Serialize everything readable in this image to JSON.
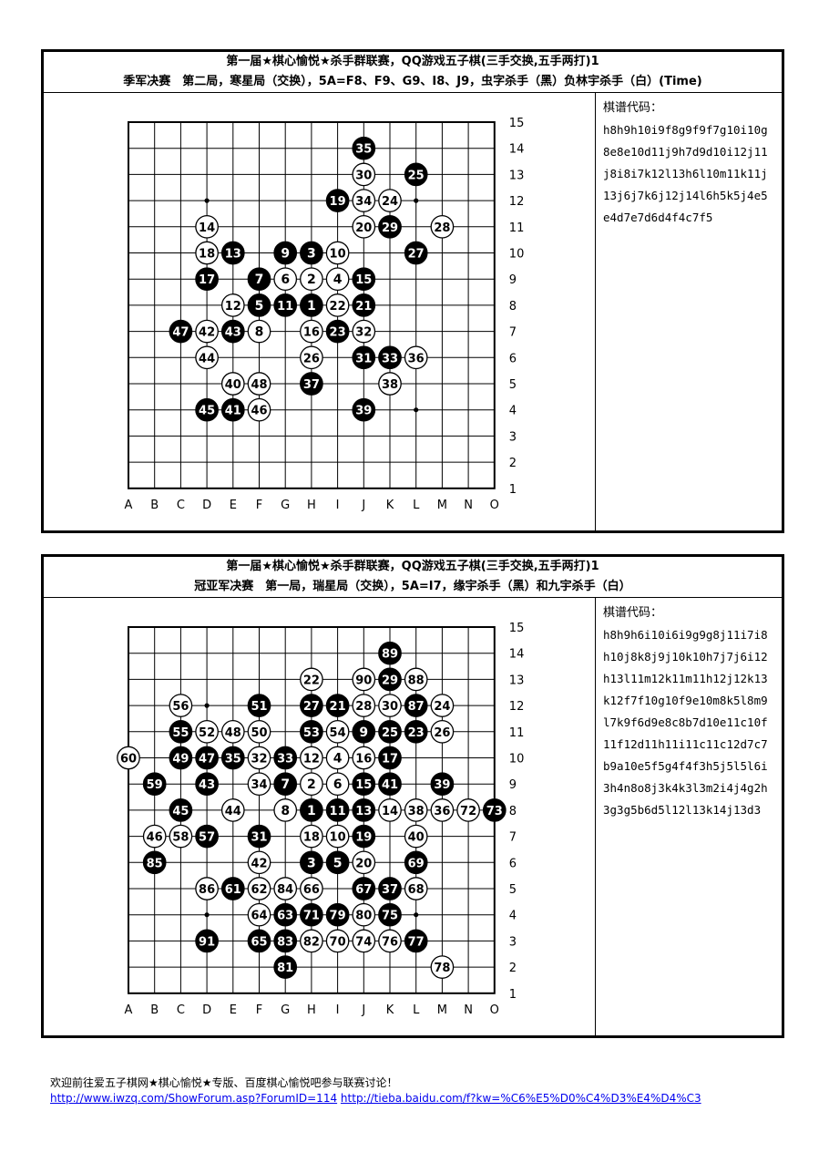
{
  "games": [
    {
      "title_line1": "第一届★棋心愉悦★杀手群联赛，QQ游戏五子棋(三手交换,五手两打)1",
      "title_line2": "季军决赛　第二局，寒星局（交换），5A=F8、F9、G9、I8、J9，虫字杀手（黑）负林宇杀手（白）(Time)",
      "code_label": "棋谱代码：",
      "code_lines": [
        "h8h9h10i9f8g9f9f7g10i10g",
        "8e8e10d11j9h7d9d10i12j11",
        "j8i8i7k12l13h6l10m11k11j",
        "13j6j7k6j12j14l6h5k5j4e5",
        "e4d7e7d6d4f4c7f5"
      ],
      "moves": "h8h9h10i9f8g9f9f7g10i10g8e8e10d11j9h7d9d10i12j11j8i8i7k12l13h6l10m11k11j13j6j7k6j12j14l6h5k5j4e5e4d7e7d6d4f4c7f5"
    },
    {
      "title_line1": "第一届★棋心愉悦★杀手群联赛，QQ游戏五子棋(三手交换,五手两打)1",
      "title_line2": "冠亚军决赛　第一局，瑞星局（交换），5A=I7，缘宇杀手（黑）和九宇杀手（白）",
      "code_label": "棋谱代码：",
      "code_lines": [
        "h8h9h6i10i6i9g9g8j11i7i8",
        "h10j8k8j9j10k10h7j7j6i12",
        "h13l11m12k11m11h12j12k13",
        "k12f7f10g10f9e10m8k5l8m9",
        "l7k9f6d9e8c8b7d10e11c10f",
        "11f12d11h11i11c11c12d7c7",
        "b9a10e5f5g4f4f3h5j5l5l6i",
        "3h4n8o8j3k4k3l3m2i4j4g2h",
        "3g3g5b6d5l12l13k14j13d3"
      ],
      "moves": "h8h9h6i10i6i9g9g8j11i7i8h10j8k8j9j10k10h7j7j6i12h13l11m12k11m11h12j12k13k12f7f10g10f9e10m8k5l8m9l7k9f6d9e8c8b7d10e11c10f11f12d11h11i11c11c12d7c7b9a10e5f5g4f4f3h5j5l5l6i3h4n8o8j3k4k3l3m2i4j4g2h3g3g5b6d5l12l13k14j13d3"
    }
  ],
  "board": {
    "col_labels": [
      "A",
      "B",
      "C",
      "D",
      "E",
      "F",
      "G",
      "H",
      "I",
      "J",
      "K",
      "L",
      "M",
      "N",
      "O"
    ],
    "row_labels": [
      "15",
      "14",
      "13",
      "12",
      "11",
      "10",
      "9",
      "8",
      "7",
      "6",
      "5",
      "4",
      "3",
      "2",
      "1"
    ]
  },
  "footer": {
    "text": "欢迎前往爱五子棋网★棋心愉悦★专版、百度棋心愉悦吧参与联赛讨论！",
    "link1": "http://www.iwzq.com/ShowForum.asp?ForumID=114",
    "link2": "http://tieba.baidu.com/f?kw=%C6%E5%D0%C4%D3%E4%D4%C3"
  }
}
